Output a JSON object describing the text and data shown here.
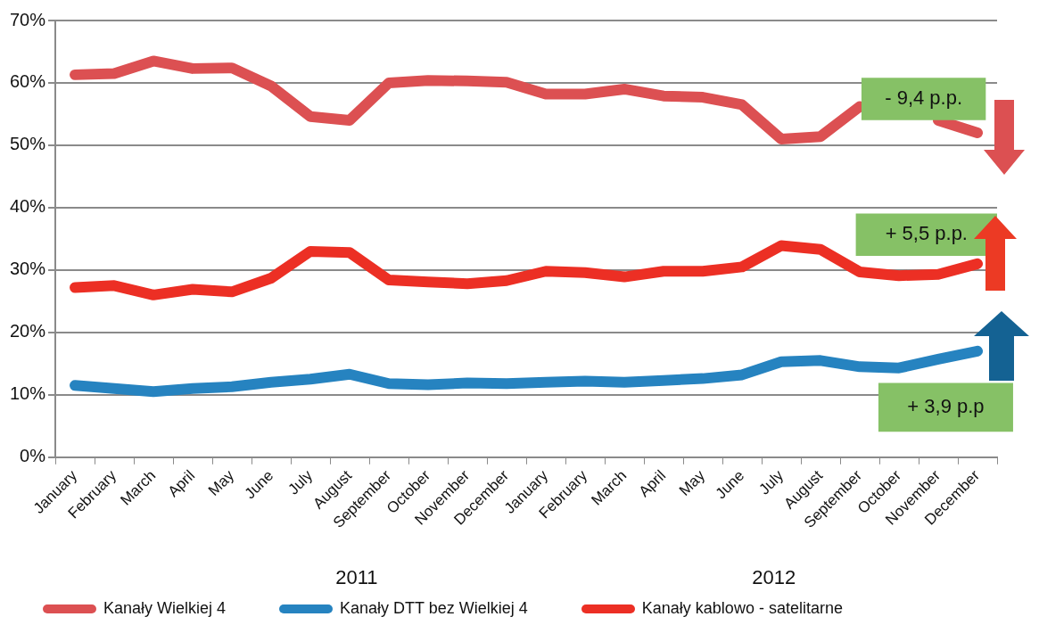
{
  "chart_data": {
    "type": "line",
    "categories": [
      "January",
      "February",
      "March",
      "April",
      "May",
      "June",
      "July",
      "August",
      "September",
      "October",
      "November",
      "December",
      "January",
      "February",
      "March",
      "April",
      "May",
      "June",
      "July",
      "August",
      "September",
      "October",
      "November",
      "December"
    ],
    "series": [
      {
        "name": "Kanały Wielkiej 4",
        "color": "#dc5052",
        "values": [
          61.3,
          61.5,
          63.5,
          62.3,
          62.4,
          59.5,
          54.6,
          54.0,
          60.0,
          60.4,
          60.3,
          60.1,
          58.2,
          58.2,
          59.0,
          57.9,
          57.7,
          56.5,
          51.0,
          51.4,
          56.2,
          null,
          54.0,
          52.0
        ]
      },
      {
        "name": "Kanały DTT bez Wielkiej 4",
        "color": "#2683c0",
        "values": [
          11.5,
          11.0,
          10.5,
          11.0,
          11.3,
          12.0,
          12.5,
          13.3,
          11.8,
          11.6,
          11.9,
          11.8,
          12.0,
          12.2,
          12.0,
          12.3,
          12.6,
          13.2,
          15.3,
          15.5,
          14.5,
          14.3,
          15.7,
          17.0
        ]
      },
      {
        "name": "Kanały kablowo - satelitarne",
        "color": "#ec2f24",
        "values": [
          27.2,
          27.5,
          26.0,
          26.9,
          26.5,
          28.7,
          33.0,
          32.8,
          28.4,
          28.1,
          27.8,
          28.3,
          29.8,
          29.6,
          28.9,
          29.8,
          29.8,
          30.5,
          33.9,
          33.3,
          29.7,
          29.1,
          29.3,
          31.0
        ]
      }
    ],
    "ylim": [
      0,
      70
    ],
    "yticks": [
      {
        "value": 0,
        "label": "0%"
      },
      {
        "value": 10,
        "label": "10%"
      },
      {
        "value": 20,
        "label": "20%"
      },
      {
        "value": 30,
        "label": "30%"
      },
      {
        "value": 40,
        "label": "40%"
      },
      {
        "value": 50,
        "label": "50%"
      },
      {
        "value": 60,
        "label": "60%"
      },
      {
        "value": 70,
        "label": "70%"
      }
    ],
    "annotations": [
      "- 9,4 p.p.",
      "+ 5,5 p.p.",
      "+ 3,9 p.p",
      "2011",
      "2012"
    ],
    "grid": "y",
    "legend": "bottom",
    "marker": "none",
    "line_style": "solid"
  }
}
